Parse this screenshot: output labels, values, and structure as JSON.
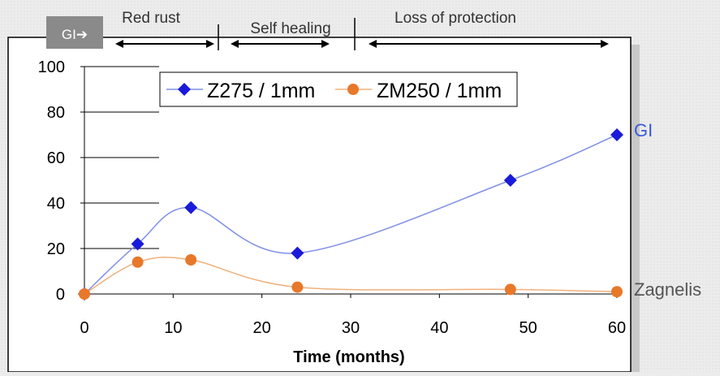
{
  "badge": {
    "label": "GI➔"
  },
  "phases": [
    {
      "label": "Red rust"
    },
    {
      "label": "Self healing"
    },
    {
      "label": "Loss of protection"
    }
  ],
  "side_labels": {
    "top": {
      "text": "GI",
      "color": "#3a5bd6"
    },
    "bottom": {
      "text": "Zagnelis",
      "color": "#555555"
    }
  },
  "chart_data": {
    "type": "line",
    "xlabel": "Time (months)",
    "ylabel": "",
    "xlim": [
      0,
      60
    ],
    "ylim": [
      0,
      100
    ],
    "x_ticks": [
      0,
      10,
      20,
      30,
      40,
      50,
      60
    ],
    "y_ticks": [
      0,
      20,
      40,
      60,
      80,
      100
    ],
    "smooth": true,
    "legend_position": "top",
    "series": [
      {
        "name": "Z275 / 1mm",
        "color": "#1a1adb",
        "line_color": "#7f8fe6",
        "marker": "diamond",
        "x": [
          0,
          6,
          12,
          24,
          48,
          60
        ],
        "values": [
          0,
          22,
          38,
          18,
          50,
          70
        ]
      },
      {
        "name": "ZM250 / 1mm",
        "color": "#e8782a",
        "line_color": "#f0b07a",
        "marker": "circle",
        "x": [
          0,
          6,
          12,
          24,
          48,
          60
        ],
        "values": [
          0,
          14,
          15,
          3,
          2,
          1
        ]
      }
    ]
  }
}
